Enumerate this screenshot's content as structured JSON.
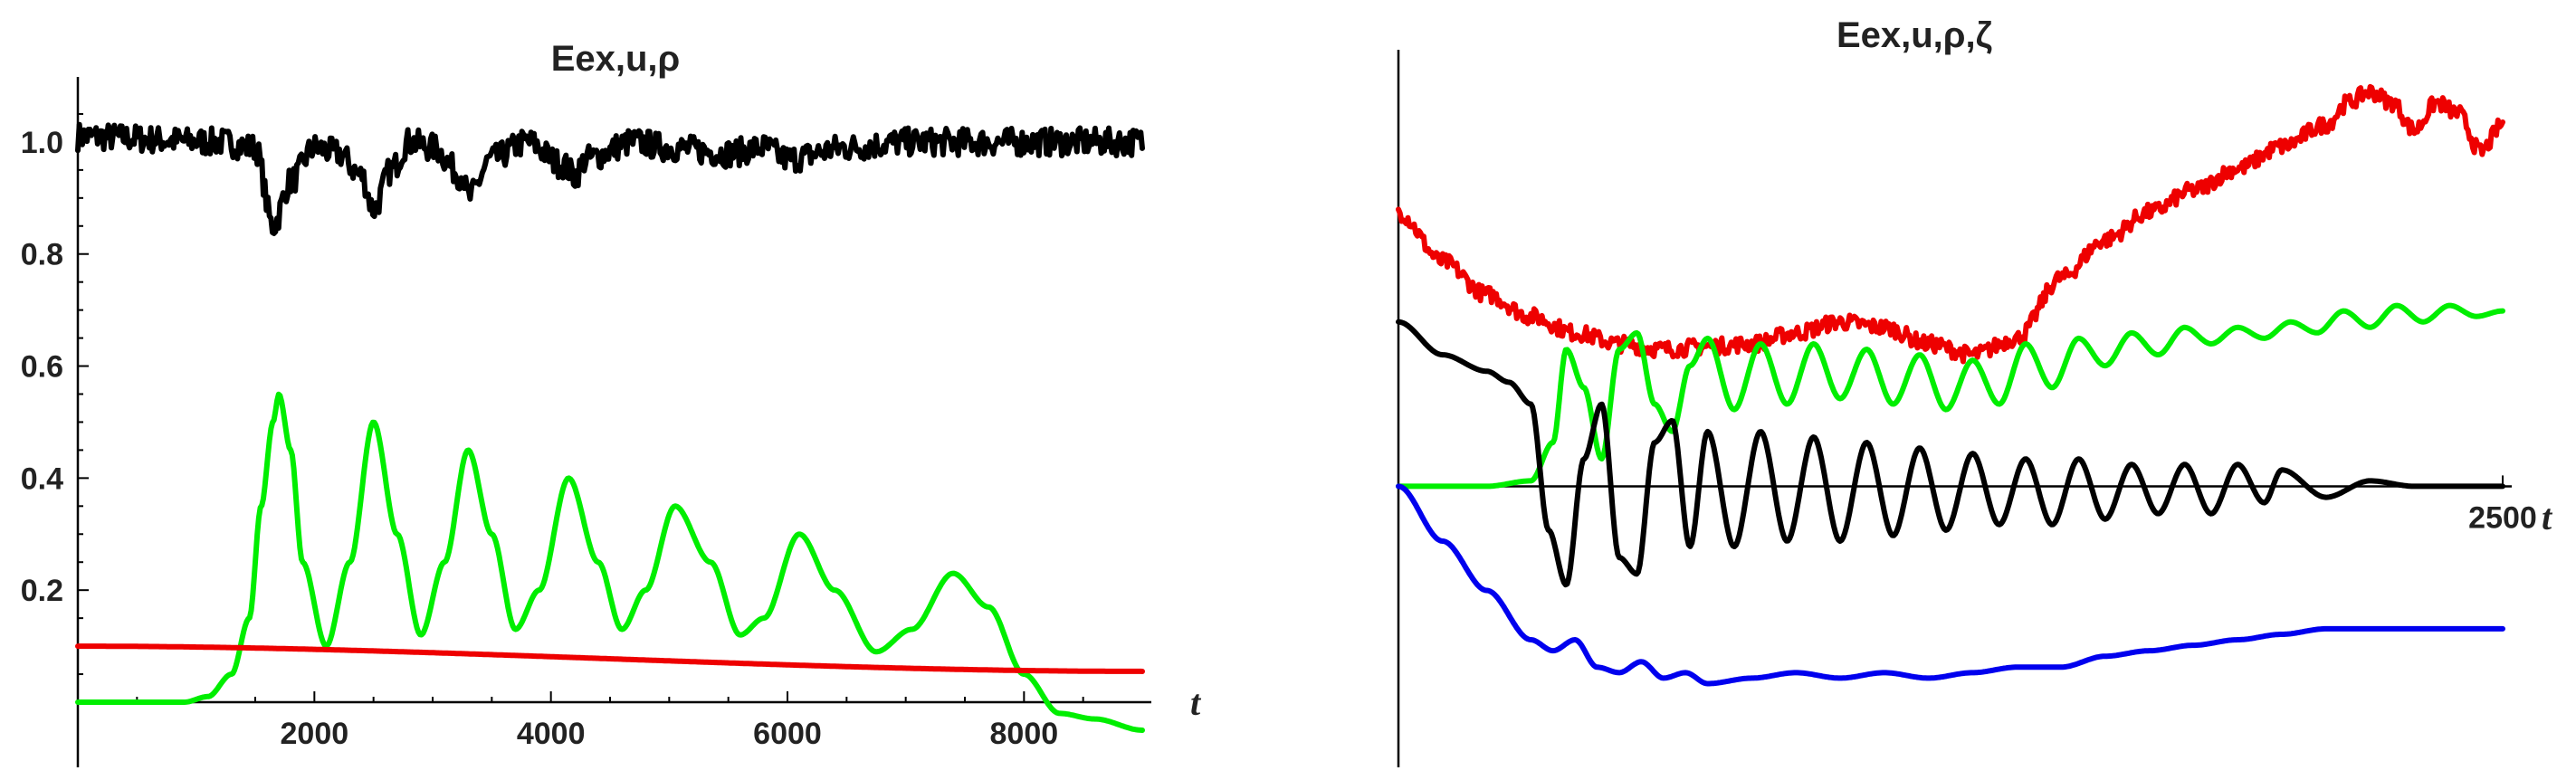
{
  "chart_data": [
    {
      "type": "line",
      "title": "Eex,u,ρ",
      "xlabel": "t",
      "ylabel": "",
      "xlim": [
        0,
        9000
      ],
      "ylim": [
        0,
        1.1
      ],
      "x_ticks": [
        2000,
        4000,
        6000,
        8000
      ],
      "x_tick_labels": [
        "2000",
        "4000",
        "6000",
        "8000"
      ],
      "y_ticks": [
        0.2,
        0.4,
        0.6,
        0.8,
        1.0
      ],
      "y_tick_labels": [
        "0.2",
        "0.4",
        "0.6",
        "0.8",
        "1.0"
      ],
      "grid": false,
      "series": [
        {
          "color": "#000000",
          "noisy": true,
          "x": [
            0,
            1200,
            1500,
            1650,
            1800,
            2000,
            2200,
            2400,
            2500,
            2650,
            2800,
            3000,
            3250,
            3300,
            3500,
            3800,
            4100,
            4200,
            4300,
            4700,
            5000,
            5500,
            5800,
            6000,
            6500,
            7000,
            8000,
            9000
          ],
          "y": [
            1.01,
            1.0,
            0.99,
            0.85,
            0.93,
            0.99,
            0.98,
            0.94,
            0.88,
            0.95,
            1.0,
            0.99,
            0.94,
            0.9,
            0.97,
            1.0,
            0.96,
            0.94,
            0.97,
            1.0,
            0.99,
            0.98,
            0.99,
            0.97,
            0.99,
            1.0,
            1.0,
            1.0
          ]
        },
        {
          "color": "#00ee00",
          "x": [
            0,
            900,
            1100,
            1300,
            1450,
            1550,
            1650,
            1700,
            1800,
            1900,
            2100,
            2300,
            2500,
            2700,
            2900,
            3100,
            3300,
            3500,
            3700,
            3900,
            4150,
            4400,
            4600,
            4800,
            5050,
            5350,
            5600,
            5800,
            6100,
            6400,
            6750,
            7050,
            7400,
            7700,
            8000,
            8300,
            8600,
            9000
          ],
          "y": [
            0.0,
            0.0,
            0.01,
            0.05,
            0.15,
            0.35,
            0.5,
            0.55,
            0.45,
            0.25,
            0.1,
            0.25,
            0.5,
            0.3,
            0.12,
            0.25,
            0.45,
            0.3,
            0.13,
            0.2,
            0.4,
            0.25,
            0.13,
            0.2,
            0.35,
            0.25,
            0.12,
            0.15,
            0.3,
            0.2,
            0.09,
            0.13,
            0.23,
            0.17,
            0.05,
            -0.02,
            -0.03,
            -0.05
          ]
        },
        {
          "color": "#ee0000",
          "x": [
            0,
            9000
          ],
          "y": [
            0.1,
            0.055
          ]
        }
      ]
    },
    {
      "type": "line",
      "title": "Eex,u,ρ,ζ",
      "xlabel": "t",
      "ylabel": "",
      "xlim": [
        0,
        2500
      ],
      "ylim": [
        -0.45,
        0.78
      ],
      "x_ticks": [
        2500
      ],
      "x_tick_labels": [
        "2500"
      ],
      "grid": false,
      "series": [
        {
          "color": "#ee0000",
          "noisy": true,
          "x": [
            0,
            100,
            200,
            300,
            400,
            500,
            600,
            700,
            800,
            900,
            1000,
            1100,
            1200,
            1300,
            1400,
            1500,
            1600,
            1700,
            1800,
            1900,
            2000,
            2100,
            2150,
            2200,
            2250,
            2300,
            2350,
            2400,
            2450,
            2500
          ],
          "y": [
            0.5,
            0.41,
            0.35,
            0.31,
            0.28,
            0.26,
            0.25,
            0.255,
            0.26,
            0.28,
            0.3,
            0.29,
            0.26,
            0.24,
            0.27,
            0.38,
            0.45,
            0.5,
            0.54,
            0.58,
            0.62,
            0.66,
            0.7,
            0.72,
            0.7,
            0.65,
            0.7,
            0.68,
            0.61,
            0.66
          ]
        },
        {
          "color": "#00ee00",
          "x": [
            0,
            200,
            300,
            350,
            380,
            420,
            460,
            500,
            540,
            580,
            620,
            660,
            700,
            760,
            820,
            880,
            940,
            1000,
            1060,
            1120,
            1180,
            1240,
            1300,
            1360,
            1420,
            1480,
            1540,
            1600,
            1660,
            1720,
            1780,
            1840,
            1900,
            1960,
            2020,
            2080,
            2140,
            2200,
            2260,
            2320,
            2380,
            2440,
            2500
          ],
          "y": [
            0.0,
            0.0,
            0.01,
            0.08,
            0.25,
            0.18,
            0.05,
            0.25,
            0.28,
            0.15,
            0.1,
            0.22,
            0.27,
            0.14,
            0.26,
            0.15,
            0.26,
            0.16,
            0.25,
            0.15,
            0.24,
            0.14,
            0.23,
            0.15,
            0.26,
            0.18,
            0.27,
            0.22,
            0.28,
            0.24,
            0.29,
            0.26,
            0.29,
            0.27,
            0.3,
            0.28,
            0.32,
            0.29,
            0.33,
            0.3,
            0.33,
            0.31,
            0.32
          ]
        },
        {
          "color": "#000000",
          "x": [
            0,
            100,
            200,
            250,
            300,
            340,
            380,
            420,
            460,
            500,
            540,
            580,
            620,
            660,
            700,
            760,
            820,
            880,
            940,
            1000,
            1060,
            1120,
            1180,
            1240,
            1300,
            1360,
            1420,
            1480,
            1540,
            1600,
            1660,
            1720,
            1780,
            1840,
            1900,
            1960,
            2000,
            2100,
            2200,
            2300,
            2400,
            2500
          ],
          "y": [
            0.3,
            0.24,
            0.21,
            0.19,
            0.15,
            -0.08,
            -0.18,
            0.05,
            0.15,
            -0.13,
            -0.16,
            0.08,
            0.12,
            -0.11,
            0.1,
            -0.11,
            0.1,
            -0.1,
            0.09,
            -0.1,
            0.08,
            -0.09,
            0.07,
            -0.08,
            0.06,
            -0.07,
            0.05,
            -0.07,
            0.05,
            -0.06,
            0.04,
            -0.05,
            0.04,
            -0.05,
            0.04,
            -0.03,
            0.03,
            -0.02,
            0.01,
            0.0,
            0.0,
            0.0
          ]
        },
        {
          "color": "#0000ee",
          "x": [
            0,
            100,
            200,
            300,
            350,
            400,
            450,
            500,
            550,
            600,
            650,
            700,
            800,
            900,
            1000,
            1100,
            1200,
            1300,
            1400,
            1500,
            1600,
            1700,
            1800,
            1900,
            2000,
            2100,
            2200,
            2300,
            2400,
            2500
          ],
          "y": [
            0.0,
            -0.1,
            -0.19,
            -0.28,
            -0.3,
            -0.28,
            -0.33,
            -0.34,
            -0.32,
            -0.35,
            -0.34,
            -0.36,
            -0.35,
            -0.34,
            -0.35,
            -0.34,
            -0.35,
            -0.34,
            -0.33,
            -0.33,
            -0.31,
            -0.3,
            -0.29,
            -0.28,
            -0.27,
            -0.26,
            -0.26,
            -0.26,
            -0.26,
            -0.26
          ]
        }
      ]
    }
  ]
}
